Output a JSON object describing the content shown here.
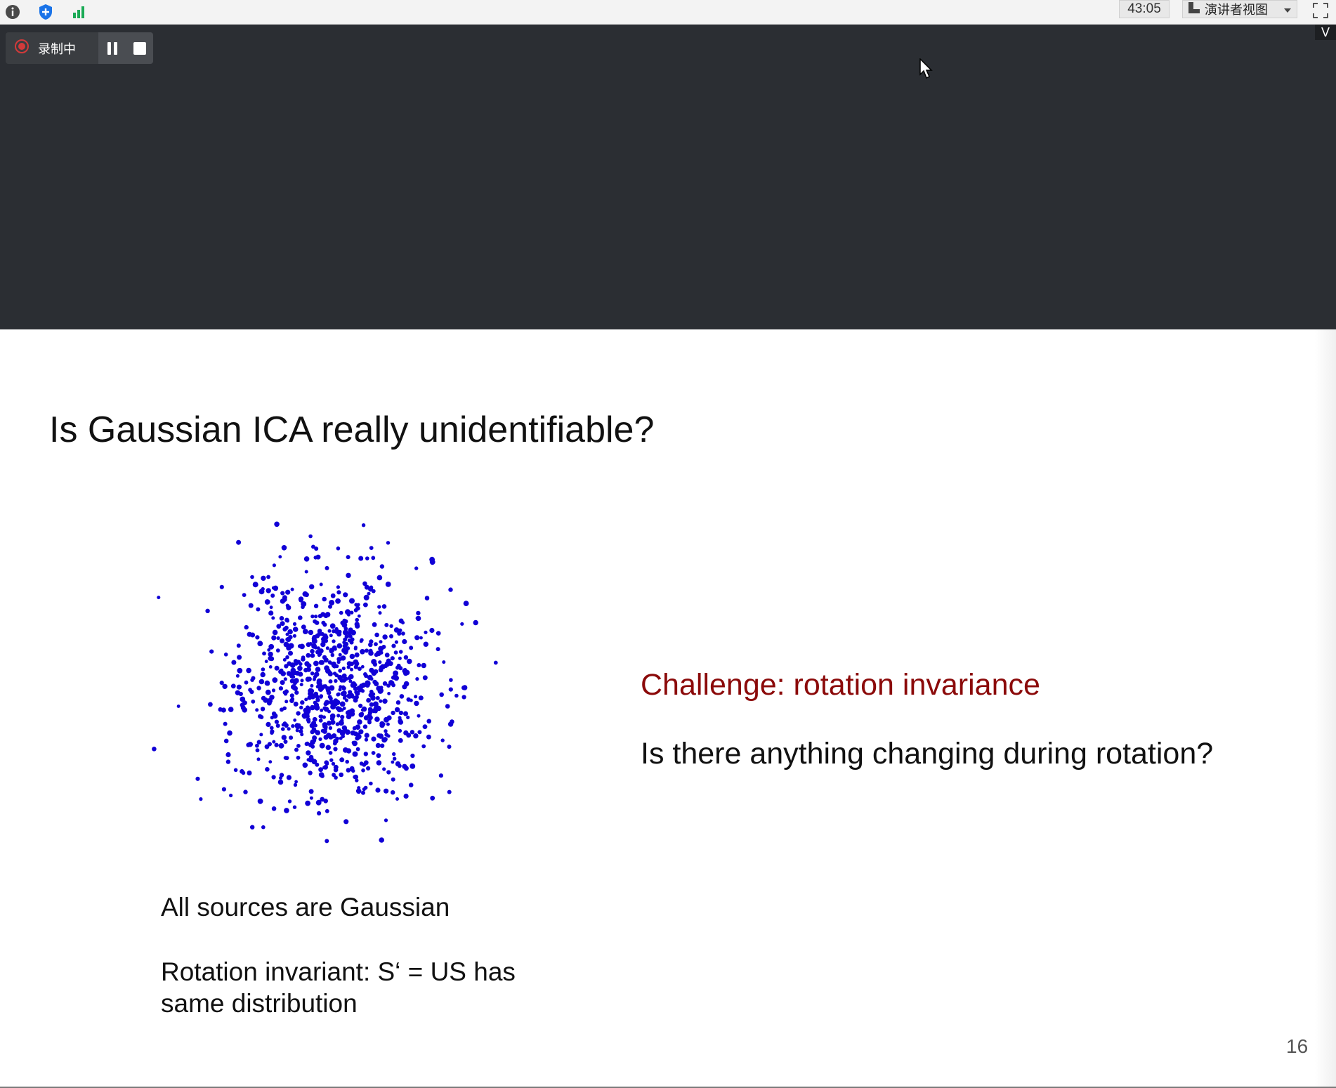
{
  "toolbar": {
    "icons": [
      "info-icon",
      "shield-icon",
      "stats-icon"
    ],
    "timer": "43:05",
    "view_mode": "演讲者视图",
    "colors": {
      "info": "#4a4a4a",
      "shield": "#1a73e8",
      "stats": "#1aaa55"
    }
  },
  "recording": {
    "status_label": "录制中",
    "status_color": "#d33a3a"
  },
  "collapse": {
    "label": "V"
  },
  "slide": {
    "title": "Is Gaussian ICA really unidentifiable?",
    "challenge": "Challenge: rotation invariance",
    "challenge_color": "#8b0a0a",
    "question": "Is there anything changing during rotation?",
    "note1": "All sources are Gaussian",
    "note2": "Rotation invariant: S‘ = US has same distribution",
    "page_number": "16",
    "scatter": {
      "description_color": "#1100d6"
    }
  }
}
